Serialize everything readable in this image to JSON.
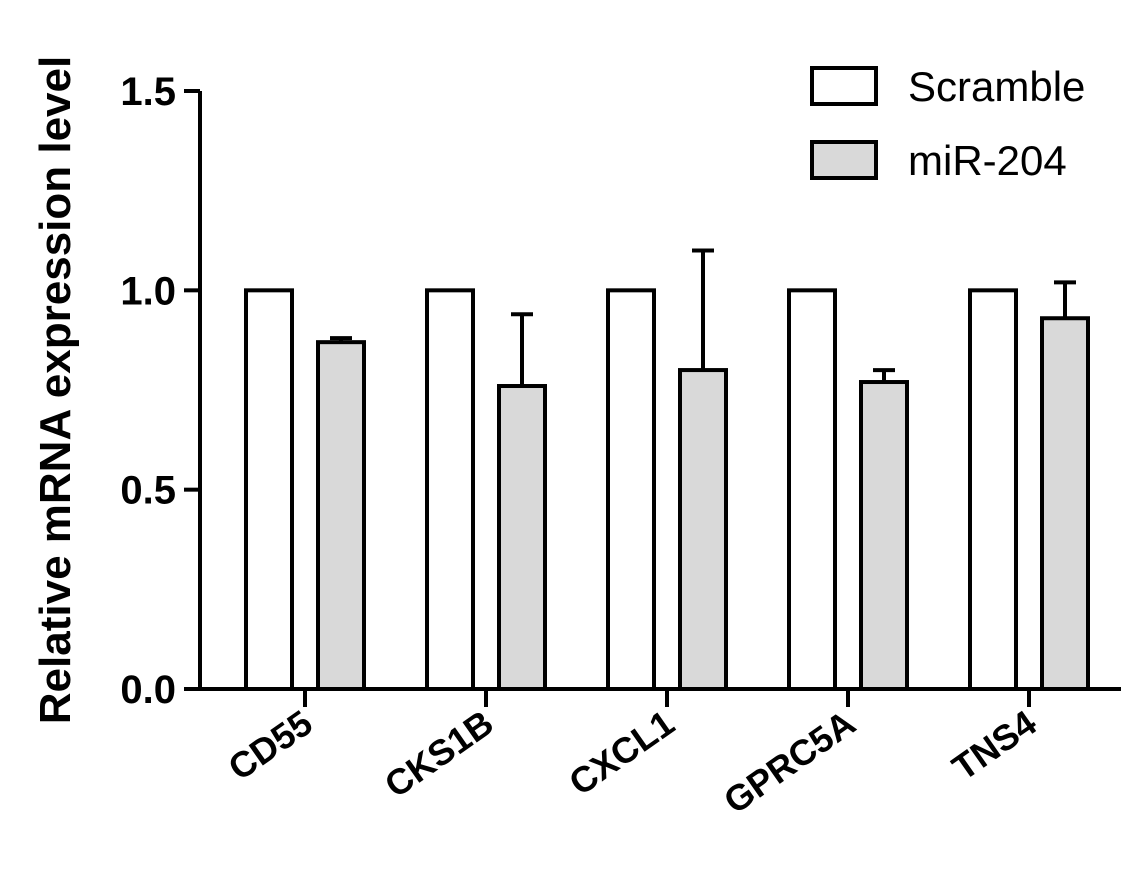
{
  "chart_data": {
    "type": "bar",
    "title": "",
    "xlabel": "",
    "ylabel": "Relative mRNA expression level",
    "ylim": [
      0,
      1.5
    ],
    "yticks": [
      0.0,
      0.5,
      1.0,
      1.5
    ],
    "ytick_labels": [
      "0.0",
      "0.5",
      "1.0",
      "1.5"
    ],
    "categories": [
      "CD55",
      "CKS1B",
      "CXCL1",
      "GPRC5A",
      "TNS4"
    ],
    "series": [
      {
        "name": "Scramble",
        "values": [
          1.0,
          1.0,
          1.0,
          1.0,
          1.0
        ],
        "errors": [
          0,
          0,
          0,
          0,
          0
        ],
        "color": "#ffffff"
      },
      {
        "name": "miR-204",
        "values": [
          0.87,
          0.76,
          0.8,
          0.77,
          0.93
        ],
        "errors": [
          0.01,
          0.18,
          0.3,
          0.03,
          0.09
        ],
        "color": "#d9d9d9"
      }
    ],
    "legend_position": "top-right",
    "grid": false
  }
}
